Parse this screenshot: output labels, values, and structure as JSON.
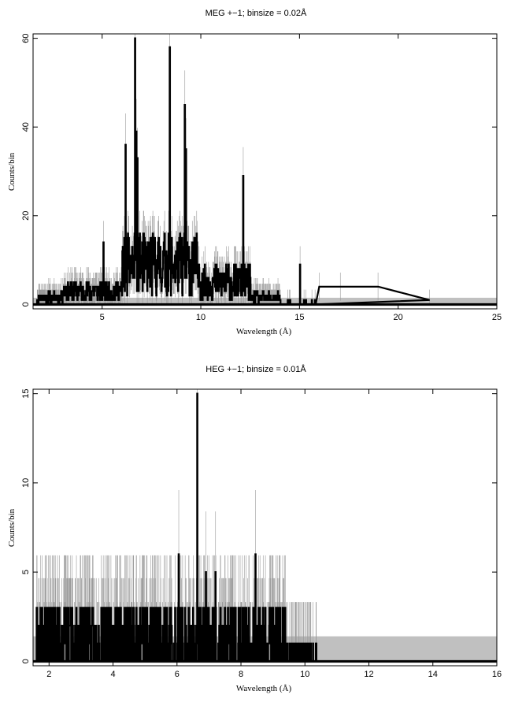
{
  "chart_data": [
    {
      "type": "histogram",
      "title": "MEG +−1; binsize = 0.02Å",
      "xlabel": "Wavelength (Å)",
      "ylabel": "Counts/bin",
      "xlim": [
        1.5,
        25
      ],
      "ylim": [
        -1,
        61
      ],
      "xticks": [
        "5",
        "10",
        "15",
        "20",
        "25"
      ],
      "yticks": [
        "0",
        "20",
        "40",
        "60"
      ],
      "xtick_values": [
        5,
        10,
        15,
        20,
        25
      ],
      "ytick_values": [
        0,
        20,
        40,
        60
      ],
      "background_band": [
        0,
        1.5
      ],
      "data_range": [
        1.7,
        15.8
      ],
      "peaks": [
        {
          "x": 5.05,
          "y": 14
        },
        {
          "x": 6.18,
          "y": 36
        },
        {
          "x": 6.65,
          "y": 60
        },
        {
          "x": 6.72,
          "y": 39
        },
        {
          "x": 6.78,
          "y": 33
        },
        {
          "x": 8.42,
          "y": 58
        },
        {
          "x": 9.17,
          "y": 45
        },
        {
          "x": 9.23,
          "y": 35
        },
        {
          "x": 12.13,
          "y": 29
        },
        {
          "x": 15.02,
          "y": 9
        },
        {
          "x": 16.0,
          "y": 4
        },
        {
          "x": 17.06,
          "y": 4
        },
        {
          "x": 18.97,
          "y": 4
        },
        {
          "x": 21.58,
          "y": 1
        }
      ]
    },
    {
      "type": "histogram",
      "title": "HEG +−1; binsize = 0.01Å",
      "xlabel": "Wavelength (Å)",
      "ylabel": "Counts/bin",
      "xlim": [
        1.5,
        16
      ],
      "ylim": [
        -0.25,
        15.25
      ],
      "xticks": [
        "2",
        "4",
        "6",
        "8",
        "10",
        "12",
        "14",
        "16"
      ],
      "yticks": [
        "0",
        "5",
        "10",
        "15"
      ],
      "xtick_values": [
        2,
        4,
        6,
        8,
        10,
        12,
        14,
        16
      ],
      "ytick_values": [
        0,
        5,
        10,
        15
      ],
      "background_band": [
        0,
        1.4
      ],
      "data_range": [
        1.6,
        10.4
      ],
      "peaks": [
        {
          "x": 6.63,
          "y": 15
        },
        {
          "x": 6.05,
          "y": 6
        },
        {
          "x": 8.45,
          "y": 6
        },
        {
          "x": 6.9,
          "y": 5
        },
        {
          "x": 7.2,
          "y": 5
        },
        {
          "x": 2.1,
          "y": 3
        }
      ]
    }
  ]
}
